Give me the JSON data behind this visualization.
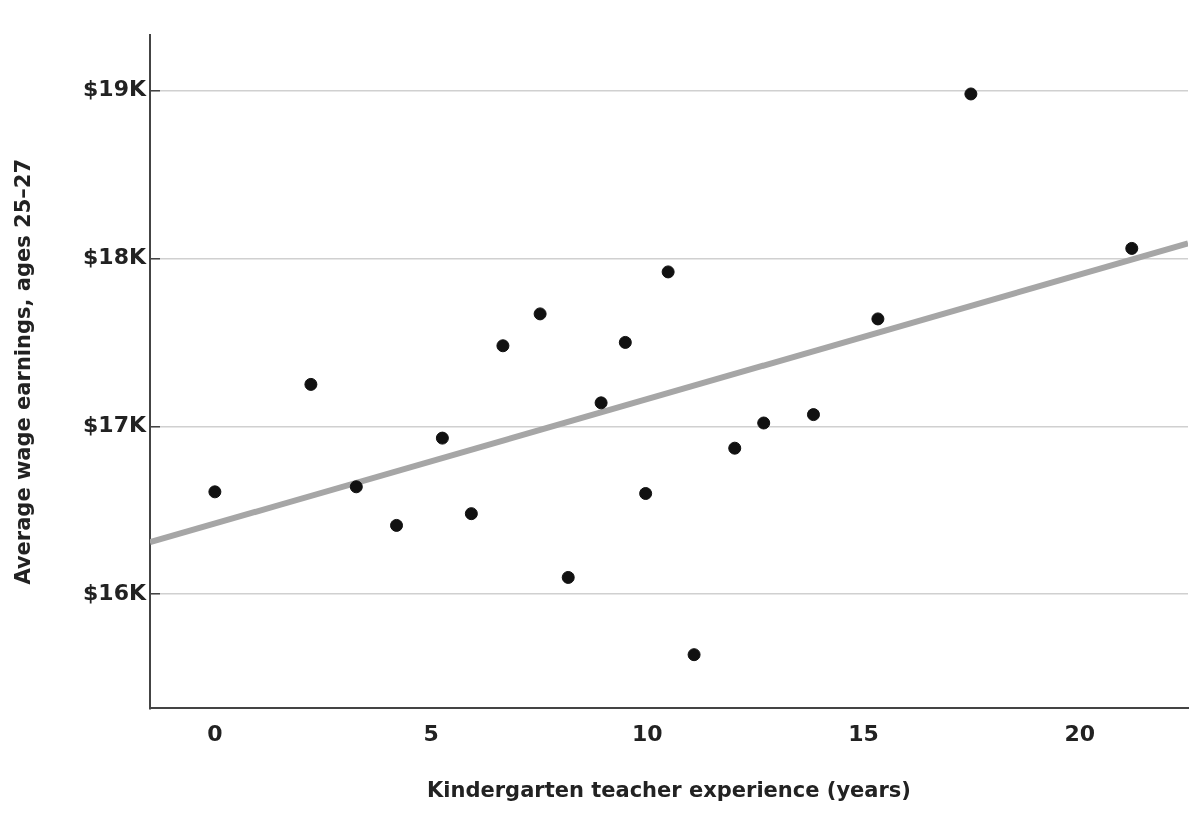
{
  "chart_data": {
    "type": "scatter",
    "xlabel": "Kindergarten teacher experience (years)",
    "ylabel": "Average wage earnings, ages 25–27",
    "xlim": [
      -1.5,
      22.5
    ],
    "xticks": [
      0,
      5,
      10,
      15,
      20
    ],
    "ylim": [
      15.32,
      19.33
    ],
    "yticks": [
      {
        "value": 16,
        "label": "$16K"
      },
      {
        "value": 17,
        "label": "$17K"
      },
      {
        "value": 18,
        "label": "$18K"
      },
      {
        "value": 19,
        "label": "$19K"
      }
    ],
    "grid": "y",
    "series": [
      {
        "color": "#111111",
        "marker": "circle",
        "x": [
          0,
          2.22,
          3.27,
          4.2,
          5.26,
          5.93,
          6.66,
          7.52,
          8.17,
          8.93,
          9.49,
          9.96,
          10.48,
          11.08,
          12.02,
          12.69,
          13.84,
          15.33,
          17.48,
          21.2
        ],
        "values": [
          16.61,
          17.25,
          16.64,
          16.41,
          16.93,
          16.48,
          17.48,
          17.67,
          16.1,
          17.14,
          17.5,
          16.6,
          17.92,
          15.64,
          16.87,
          17.02,
          17.07,
          17.64,
          18.98,
          18.06
        ]
      },
      {
        "type": "line",
        "color": "#a6a6a6",
        "line_style": "solid",
        "marker": "none",
        "x": [
          -1.5,
          22.5
        ],
        "values": [
          16.31,
          18.09
        ]
      }
    ]
  }
}
